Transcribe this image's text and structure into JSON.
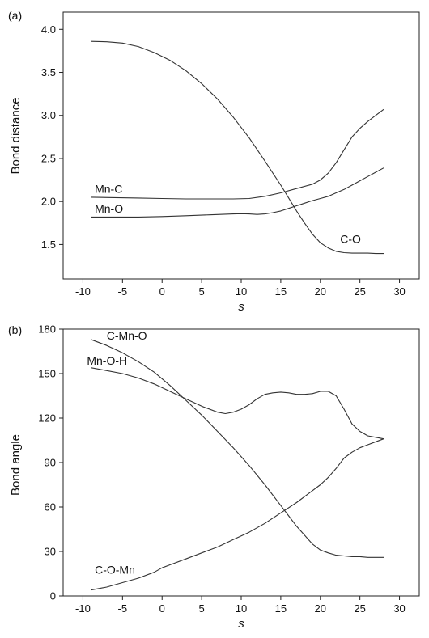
{
  "chart_data": [
    {
      "type": "line",
      "panel_label": "(a)",
      "xlabel": "s",
      "ylabel": "Bond distance",
      "xlim": [
        -12.5,
        32.5
      ],
      "ylim": [
        1.1,
        4.2
      ],
      "xticks": [
        -10,
        -5,
        0,
        5,
        10,
        15,
        20,
        25,
        30
      ],
      "yticks": [
        1.5,
        2.0,
        2.5,
        3.0,
        3.5,
        4.0
      ],
      "ytick_labels": [
        "1.5",
        "2.0",
        "2.5",
        "3.0",
        "3.5",
        "4.0"
      ],
      "grid": false,
      "legend": "none",
      "series": [
        {
          "name": "C-O",
          "label_at": [
            22.5,
            1.52
          ],
          "x": [
            -9,
            -7,
            -5,
            -3,
            -1,
            1,
            3,
            5,
            7,
            9,
            11,
            13,
            15,
            16,
            17,
            18,
            19,
            20,
            21,
            22,
            23,
            24,
            25,
            26,
            27,
            28
          ],
          "y": [
            3.86,
            3.855,
            3.84,
            3.8,
            3.73,
            3.64,
            3.52,
            3.37,
            3.19,
            2.98,
            2.74,
            2.47,
            2.19,
            2.04,
            1.89,
            1.75,
            1.62,
            1.52,
            1.46,
            1.42,
            1.405,
            1.4,
            1.4,
            1.4,
            1.395,
            1.395
          ]
        },
        {
          "name": "Mn-C",
          "label_at": [
            -8.5,
            2.1
          ],
          "x": [
            -9,
            -6,
            -3,
            0,
            3,
            6,
            9,
            11,
            13,
            15,
            17,
            19,
            20,
            21,
            22,
            23,
            24,
            25,
            26,
            27,
            28
          ],
          "y": [
            2.05,
            2.045,
            2.04,
            2.035,
            2.03,
            2.03,
            2.03,
            2.035,
            2.06,
            2.1,
            2.15,
            2.2,
            2.25,
            2.33,
            2.45,
            2.6,
            2.75,
            2.85,
            2.93,
            3.0,
            3.07
          ]
        },
        {
          "name": "Mn-O",
          "label_at": [
            -8.5,
            1.87
          ],
          "x": [
            -9,
            -6,
            -3,
            0,
            3,
            6,
            9,
            10,
            11,
            12,
            13,
            14,
            15,
            16,
            17,
            18,
            19,
            20,
            21,
            22,
            23,
            24,
            25,
            26,
            27,
            28
          ],
          "y": [
            1.82,
            1.82,
            1.82,
            1.825,
            1.835,
            1.845,
            1.855,
            1.858,
            1.855,
            1.85,
            1.855,
            1.87,
            1.89,
            1.92,
            1.95,
            1.98,
            2.01,
            2.035,
            2.06,
            2.1,
            2.14,
            2.19,
            2.24,
            2.29,
            2.34,
            2.39
          ]
        }
      ]
    },
    {
      "type": "line",
      "panel_label": "(b)",
      "xlabel": "s",
      "ylabel": "Bond angle",
      "xlim": [
        -12.5,
        32.5
      ],
      "ylim": [
        0,
        180
      ],
      "xticks": [
        -10,
        -5,
        0,
        5,
        10,
        15,
        20,
        25,
        30
      ],
      "yticks": [
        0,
        30,
        60,
        90,
        120,
        150,
        180
      ],
      "ytick_labels": [
        "0",
        "30",
        "60",
        "90",
        "120",
        "150",
        "180"
      ],
      "grid": false,
      "legend": "none",
      "series": [
        {
          "name": "C-Mn-O",
          "label_at": [
            -7,
            173
          ],
          "x": [
            -9,
            -7,
            -5,
            -3,
            -1,
            1,
            3,
            5,
            7,
            9,
            11,
            13,
            15,
            16,
            17,
            18,
            19,
            20,
            21,
            22,
            23,
            24,
            25,
            26,
            27,
            28
          ],
          "y": [
            173,
            169,
            164,
            158,
            151,
            142,
            132,
            122,
            111,
            100,
            88,
            75,
            61,
            54,
            47,
            41,
            35,
            31,
            29,
            27.5,
            27,
            26.5,
            26.5,
            26,
            26,
            26
          ]
        },
        {
          "name": "Mn-O-H",
          "label_at": [
            -9.5,
            156
          ],
          "x": [
            -9,
            -7,
            -5,
            -3,
            -1,
            1,
            3,
            5,
            7,
            8,
            9,
            10,
            11,
            12,
            13,
            14,
            15,
            16,
            17,
            18,
            19,
            20,
            21,
            22,
            23,
            24,
            25,
            26,
            27,
            28
          ],
          "y": [
            154,
            152,
            150,
            147,
            143,
            138,
            133,
            128,
            124,
            123,
            124,
            126,
            129,
            133,
            136,
            137,
            137.5,
            137,
            136,
            136,
            136.5,
            138,
            138,
            135,
            126,
            116,
            111,
            108,
            107,
            106
          ]
        },
        {
          "name": "C-O-Mn",
          "label_at": [
            -8.5,
            15
          ],
          "x": [
            -9,
            -7,
            -5,
            -3,
            -1,
            0,
            1,
            3,
            5,
            7,
            9,
            11,
            13,
            15,
            17,
            19,
            20,
            21,
            22,
            23,
            24,
            25,
            26,
            27,
            28
          ],
          "y": [
            4,
            6,
            9,
            12,
            16,
            19,
            21,
            25,
            29,
            33,
            38,
            43,
            49,
            56,
            63,
            71,
            75,
            80,
            86,
            93,
            97,
            100,
            102,
            104,
            106
          ]
        }
      ]
    }
  ]
}
